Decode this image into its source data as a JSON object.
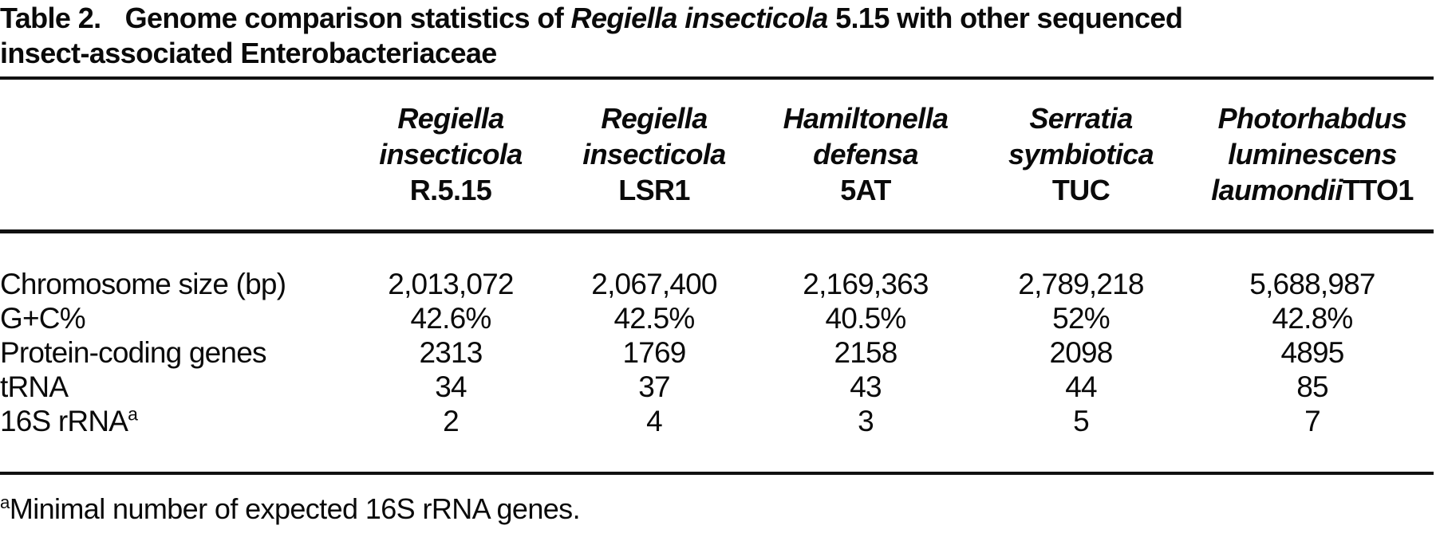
{
  "title": {
    "label": "Table 2.",
    "text_before_italic": "Genome comparison statistics of ",
    "italic": "Regiella insecticola",
    "text_after_italic": " 5.15 with other sequenced",
    "line2": "insect-associated Enterobacteriaceae"
  },
  "columns": [
    {
      "genus": "Regiella",
      "species": "insecticola",
      "strain_italic": "",
      "strain": "R.5.15"
    },
    {
      "genus": "Regiella",
      "species": "insecticola",
      "strain_italic": "",
      "strain": "LSR1"
    },
    {
      "genus": "Hamiltonella",
      "species": "defensa",
      "strain_italic": "",
      "strain": "5AT"
    },
    {
      "genus": "Serratia",
      "species": "symbiotica",
      "strain_italic": "",
      "strain": "TUC"
    },
    {
      "genus": "Photorhabdus",
      "species": "luminescens",
      "strain_italic": "laumondii",
      "strain": "TTO1"
    }
  ],
  "rows": [
    {
      "label": "Chromosome size (bp)",
      "sup": "",
      "values": [
        "2,013,072",
        "2,067,400",
        "2,169,363",
        "2,789,218",
        "5,688,987"
      ]
    },
    {
      "label": "G+C%",
      "sup": "",
      "values": [
        "42.6%",
        "42.5%",
        "40.5%",
        "52%",
        "42.8%"
      ]
    },
    {
      "label": "Protein-coding genes",
      "sup": "",
      "values": [
        "2313",
        "1769",
        "2158",
        "2098",
        "4895"
      ]
    },
    {
      "label": "tRNA",
      "sup": "",
      "values": [
        "34",
        "37",
        "43",
        "44",
        "85"
      ]
    },
    {
      "label": "16S rRNA",
      "sup": "a",
      "values": [
        "2",
        "4",
        "3",
        "5",
        "7"
      ]
    }
  ],
  "footnote": {
    "sup": "a",
    "text": "Minimal number of expected 16S rRNA genes."
  }
}
